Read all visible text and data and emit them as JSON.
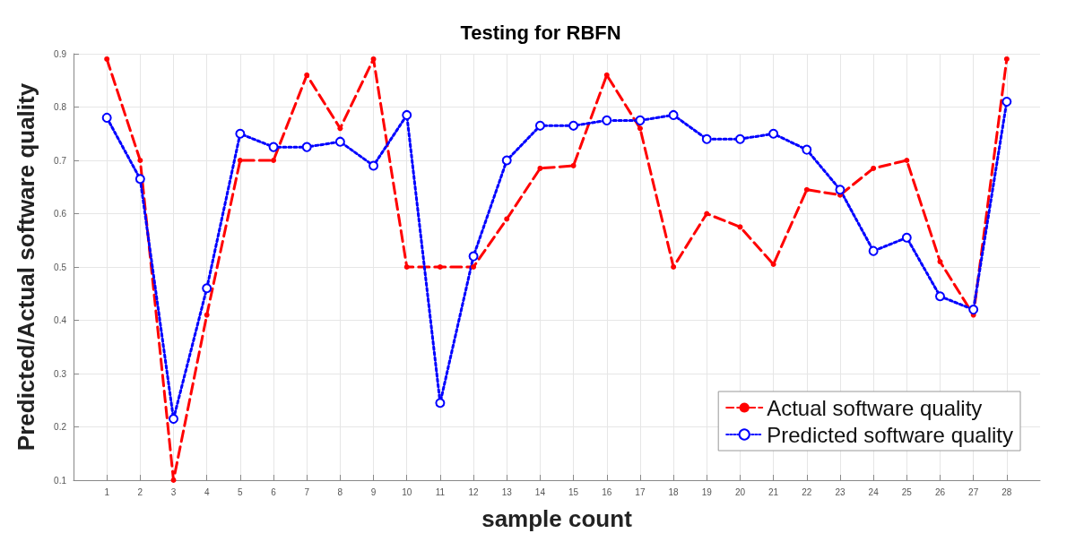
{
  "chart_data": {
    "type": "line",
    "title": "Testing for RBFN",
    "xlabel": "sample count",
    "ylabel": "Predicted/Actual software quality",
    "x": [
      1,
      2,
      3,
      4,
      5,
      6,
      7,
      8,
      9,
      10,
      11,
      12,
      13,
      14,
      15,
      16,
      17,
      18,
      19,
      20,
      21,
      22,
      23,
      24,
      25,
      26,
      27,
      28
    ],
    "series": [
      {
        "name": "Actual software quality",
        "color": "#ff0000",
        "line_style": "dashed",
        "marker": "circle",
        "values": [
          0.89,
          0.7,
          0.1,
          0.41,
          0.7,
          0.7,
          0.86,
          0.76,
          0.89,
          0.5,
          0.5,
          0.5,
          0.59,
          0.685,
          0.69,
          0.86,
          0.76,
          0.5,
          0.6,
          0.575,
          0.505,
          0.645,
          0.635,
          0.685,
          0.7,
          0.51,
          0.41,
          0.89
        ]
      },
      {
        "name": "Predicted software quality",
        "color": "#0000ff",
        "line_style": "dotted",
        "marker": "circle",
        "values": [
          0.78,
          0.665,
          0.215,
          0.46,
          0.75,
          0.725,
          0.725,
          0.735,
          0.69,
          0.785,
          0.245,
          0.52,
          0.7,
          0.765,
          0.765,
          0.775,
          0.775,
          0.785,
          0.74,
          0.74,
          0.75,
          0.72,
          0.645,
          0.53,
          0.555,
          0.445,
          0.42,
          0.81
        ]
      }
    ],
    "xlim": [
      0,
      29
    ],
    "xticks": [
      1,
      2,
      3,
      4,
      5,
      6,
      7,
      8,
      9,
      10,
      11,
      12,
      13,
      14,
      15,
      16,
      17,
      18,
      19,
      20,
      21,
      22,
      23,
      24,
      25,
      26,
      27,
      28
    ],
    "ylim": [
      0.1,
      0.9
    ],
    "yticks": [
      0.1,
      0.2,
      0.3,
      0.4,
      0.5,
      0.6,
      0.7,
      0.8,
      0.9
    ],
    "grid": true,
    "legend": "bottom right"
  }
}
